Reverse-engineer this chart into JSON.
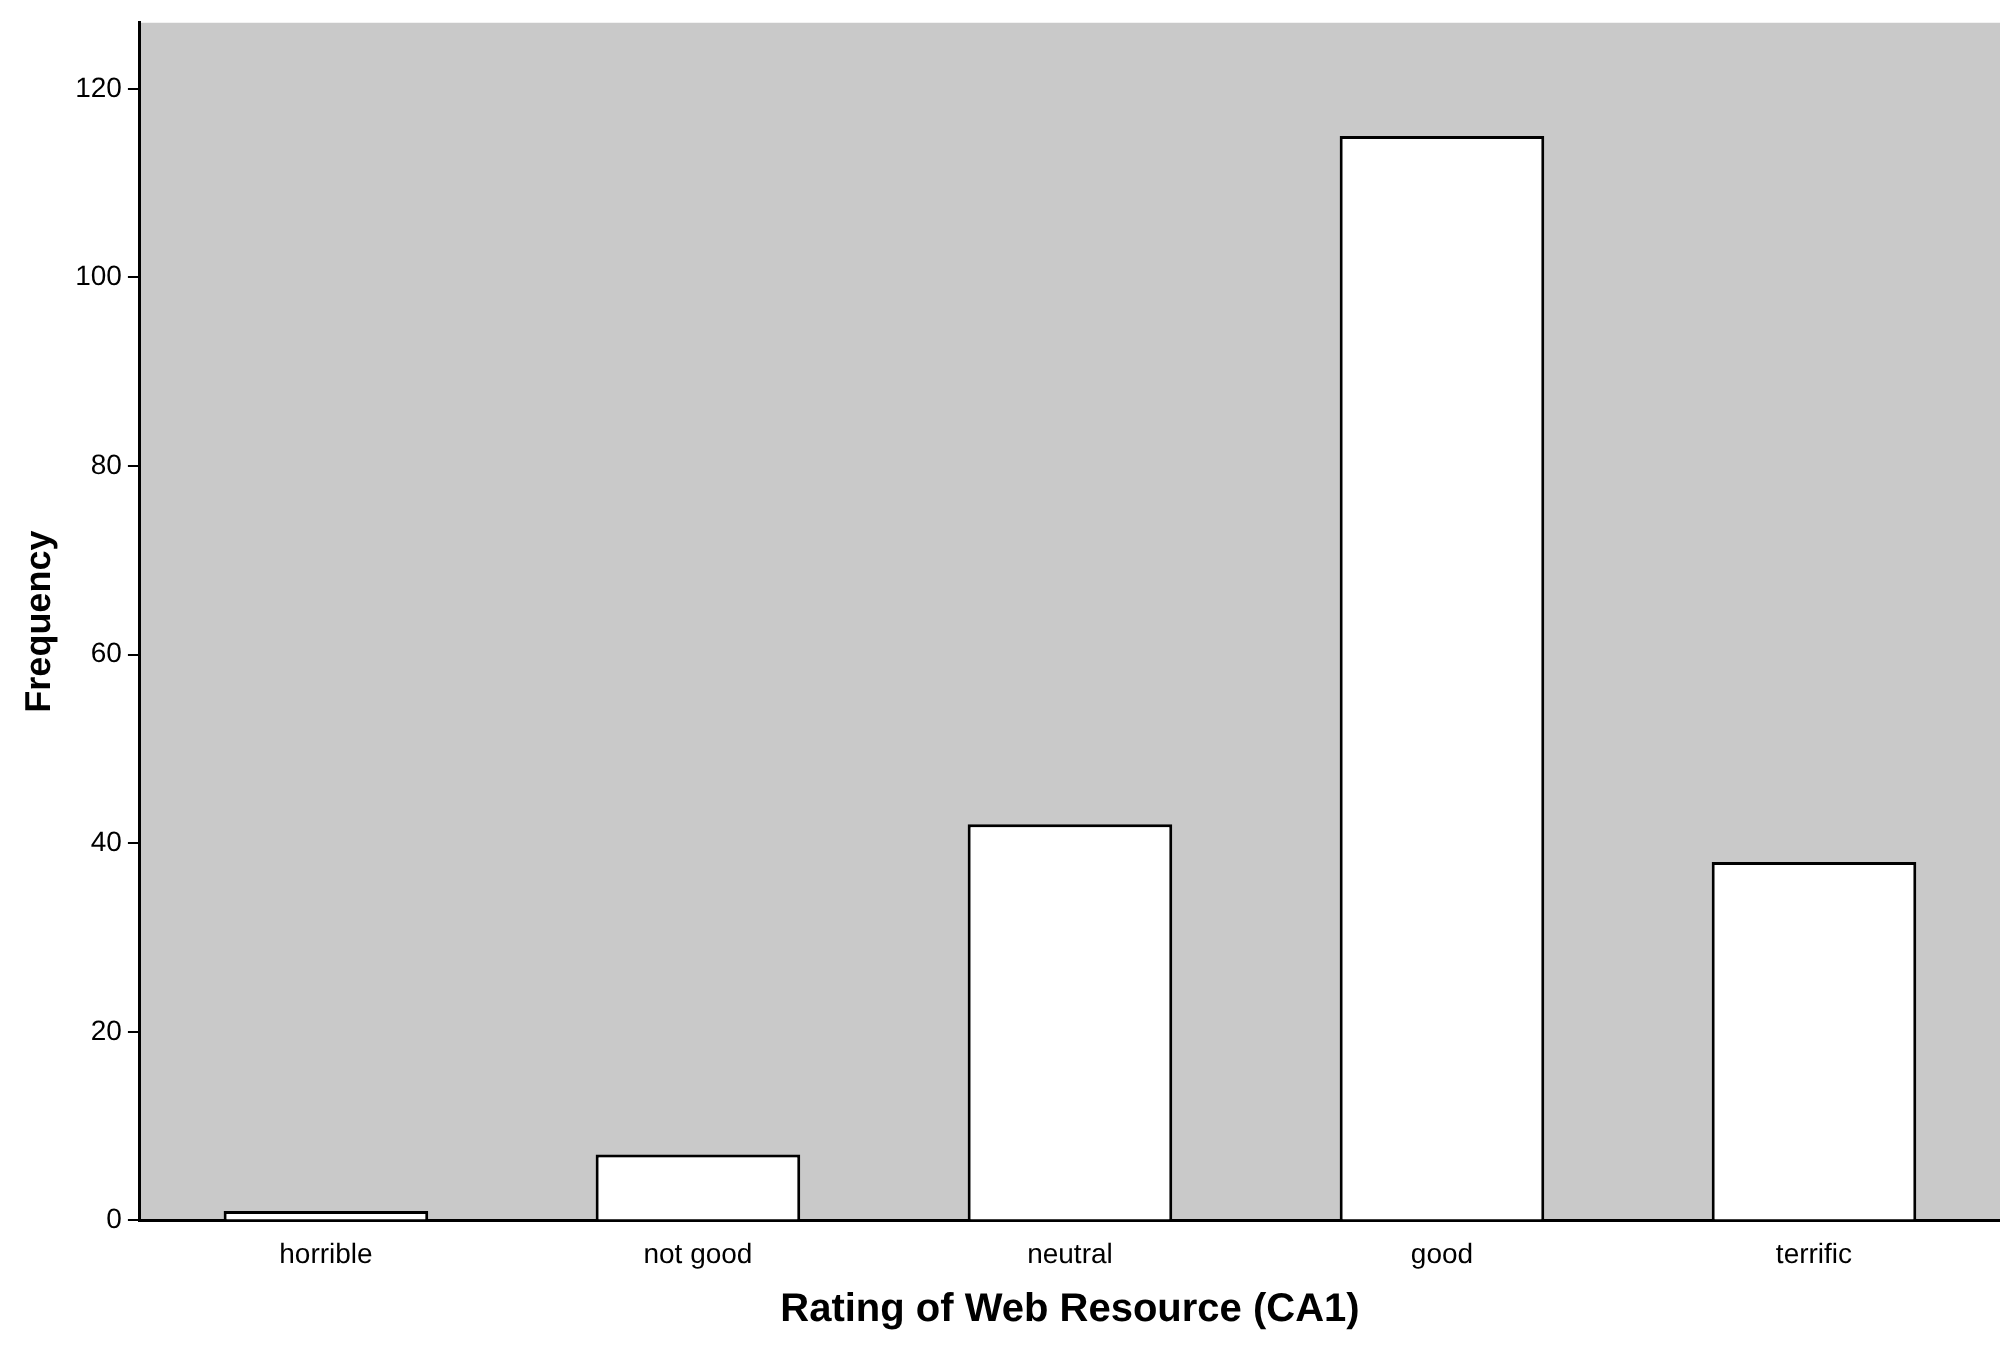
{
  "chart_data": {
    "type": "bar",
    "xlabel": "Rating of Web Resource (CA1)",
    "ylabel": "Frequency",
    "categories": [
      "horrible",
      "not good",
      "neutral",
      "good",
      "terrific"
    ],
    "values": [
      1,
      7,
      42,
      115,
      38
    ],
    "color": "#ffffff",
    "ylim": [
      0,
      127
    ],
    "yticks": [
      0,
      20,
      40,
      60,
      80,
      100,
      120
    ],
    "grid": false,
    "legend": false
  }
}
